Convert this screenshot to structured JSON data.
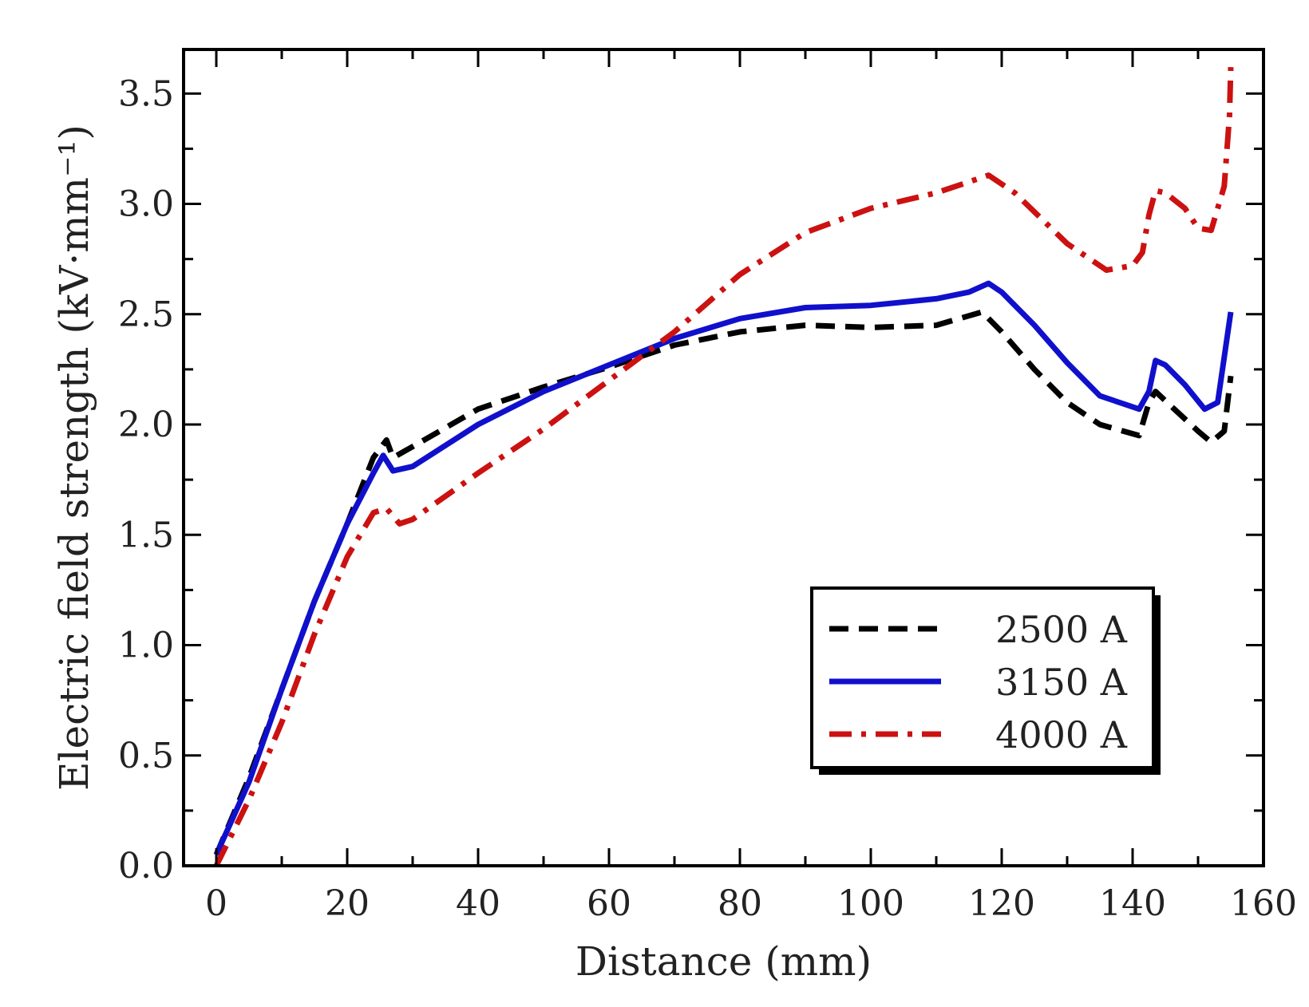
{
  "chart_data": {
    "type": "line",
    "title": "",
    "xlabel": "Distance (mm)",
    "ylabel": "Electric field strength (kV·mm⁻¹)",
    "xlim": [
      -5,
      160
    ],
    "ylim": [
      0,
      3.7
    ],
    "xticks": [
      0,
      20,
      40,
      60,
      80,
      100,
      120,
      140,
      160
    ],
    "yticks": [
      0.0,
      0.5,
      1.0,
      1.5,
      2.0,
      2.5,
      3.0,
      3.5
    ],
    "xtick_labels": [
      "0",
      "20",
      "40",
      "60",
      "80",
      "100",
      "120",
      "140",
      "160"
    ],
    "ytick_labels": [
      "0.0",
      "0.5",
      "1.0",
      "1.5",
      "2.0",
      "2.5",
      "3.0",
      "3.5"
    ],
    "grid": false,
    "legend_position": "bottom-right",
    "series": [
      {
        "name": "2500 A",
        "color": "#000000",
        "style": "dashed",
        "points": [
          [
            0,
            0.05
          ],
          [
            5,
            0.4
          ],
          [
            10,
            0.8
          ],
          [
            15,
            1.2
          ],
          [
            20,
            1.55
          ],
          [
            24,
            1.85
          ],
          [
            26,
            1.93
          ],
          [
            27,
            1.85
          ],
          [
            30,
            1.9
          ],
          [
            40,
            2.07
          ],
          [
            50,
            2.17
          ],
          [
            60,
            2.26
          ],
          [
            70,
            2.36
          ],
          [
            80,
            2.42
          ],
          [
            90,
            2.45
          ],
          [
            100,
            2.44
          ],
          [
            110,
            2.45
          ],
          [
            117,
            2.51
          ],
          [
            120,
            2.42
          ],
          [
            125,
            2.25
          ],
          [
            130,
            2.1
          ],
          [
            135,
            2.0
          ],
          [
            141,
            1.95
          ],
          [
            142.5,
            2.1
          ],
          [
            143.5,
            2.15
          ],
          [
            146,
            2.08
          ],
          [
            150,
            1.97
          ],
          [
            152,
            1.92
          ],
          [
            154,
            1.97
          ],
          [
            155,
            2.22
          ]
        ]
      },
      {
        "name": "3150 A",
        "color": "#1010cc",
        "style": "solid",
        "points": [
          [
            0,
            0.05
          ],
          [
            5,
            0.38
          ],
          [
            10,
            0.8
          ],
          [
            15,
            1.2
          ],
          [
            20,
            1.55
          ],
          [
            24,
            1.78
          ],
          [
            25.5,
            1.86
          ],
          [
            27,
            1.79
          ],
          [
            30,
            1.81
          ],
          [
            40,
            2.0
          ],
          [
            50,
            2.15
          ],
          [
            60,
            2.27
          ],
          [
            70,
            2.39
          ],
          [
            80,
            2.48
          ],
          [
            90,
            2.53
          ],
          [
            100,
            2.54
          ],
          [
            110,
            2.57
          ],
          [
            115,
            2.6
          ],
          [
            118,
            2.64
          ],
          [
            120,
            2.6
          ],
          [
            125,
            2.45
          ],
          [
            130,
            2.28
          ],
          [
            135,
            2.13
          ],
          [
            141,
            2.07
          ],
          [
            142.5,
            2.15
          ],
          [
            143.5,
            2.29
          ],
          [
            145,
            2.27
          ],
          [
            148,
            2.18
          ],
          [
            151,
            2.07
          ],
          [
            153,
            2.1
          ],
          [
            155,
            2.51
          ]
        ]
      },
      {
        "name": "4000 A",
        "color": "#cc1111",
        "style": "dashdot",
        "points": [
          [
            0,
            0.0
          ],
          [
            5,
            0.3
          ],
          [
            10,
            0.65
          ],
          [
            15,
            1.05
          ],
          [
            20,
            1.4
          ],
          [
            24,
            1.6
          ],
          [
            26,
            1.62
          ],
          [
            28,
            1.55
          ],
          [
            30,
            1.57
          ],
          [
            40,
            1.78
          ],
          [
            50,
            1.98
          ],
          [
            60,
            2.2
          ],
          [
            70,
            2.42
          ],
          [
            80,
            2.68
          ],
          [
            90,
            2.87
          ],
          [
            100,
            2.98
          ],
          [
            110,
            3.05
          ],
          [
            118,
            3.13
          ],
          [
            122,
            3.05
          ],
          [
            130,
            2.82
          ],
          [
            136,
            2.7
          ],
          [
            140,
            2.72
          ],
          [
            141.5,
            2.78
          ],
          [
            142.5,
            2.95
          ],
          [
            143.5,
            3.06
          ],
          [
            145,
            3.05
          ],
          [
            148,
            2.98
          ],
          [
            150,
            2.89
          ],
          [
            152,
            2.88
          ],
          [
            154,
            3.08
          ],
          [
            154.8,
            3.4
          ],
          [
            155,
            3.62
          ]
        ]
      }
    ]
  }
}
